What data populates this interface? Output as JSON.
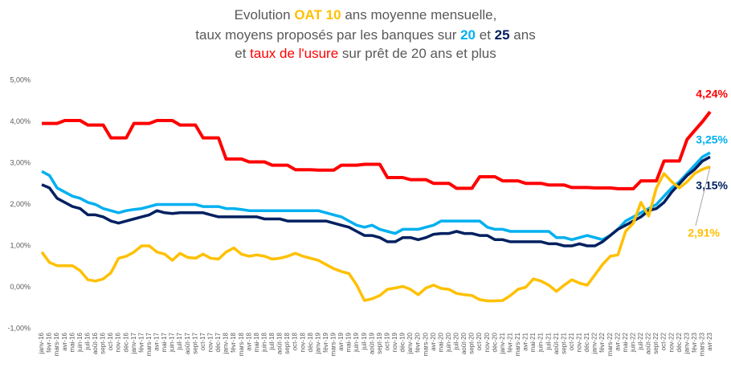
{
  "chart_data": {
    "type": "line",
    "title": [
      [
        "Evolution ",
        "OAT 10",
        " ans moyenne mensuelle,"
      ],
      [
        "taux moyens proposés par les banques sur ",
        "20",
        " et ",
        "25",
        " ans"
      ],
      [
        "et ",
        "taux de l'usure",
        " sur prêt de 20 ans et plus"
      ]
    ],
    "categories": [
      "janv-16",
      "févr-16",
      "mars-16",
      "avr-16",
      "mai-16",
      "juin-16",
      "juil-16",
      "août-16",
      "sept-16",
      "oct-16",
      "nov-16",
      "déc-16",
      "janv-17",
      "févr-17",
      "mars-17",
      "avr-17",
      "mai-17",
      "juin-17",
      "juil-17",
      "août-17",
      "sept-17",
      "oct-17",
      "nov-17",
      "déc-17",
      "janv-18",
      "févr-18",
      "mars-18",
      "avr-18",
      "mai-18",
      "juin-18",
      "juil-18",
      "août-18",
      "sept-18",
      "oct-18",
      "nov-18",
      "déc-18",
      "janv-19",
      "févr-19",
      "mars-19",
      "avr-19",
      "mai-19",
      "juin-19",
      "juil-19",
      "août-19",
      "sept-19",
      "oct-19",
      "nov-19",
      "déc-19",
      "janv-20",
      "févr-20",
      "mars-20",
      "avr-20",
      "mai-20",
      "juin-20",
      "juil-20",
      "août-20",
      "sept-20",
      "oct-20",
      "nov-20",
      "déc-20",
      "janv-21",
      "févr-21",
      "mars-21",
      "avr-21",
      "mai-21",
      "juin-21",
      "juil-21",
      "août-21",
      "sept-21",
      "oct-21",
      "nov-21",
      "déc-21",
      "janv-22",
      "févr-22",
      "mars-22",
      "avr-22",
      "mai-22",
      "juin-22",
      "juil-22",
      "août-22",
      "sept-22",
      "oct-22",
      "nov-22",
      "déc-22",
      "janv-23",
      "févr-23",
      "mars-23",
      "avr-23"
    ],
    "series": [
      {
        "color": "#ff0000",
        "values": [
          3.96,
          3.96,
          3.96,
          4.03,
          4.03,
          4.03,
          3.92,
          3.92,
          3.92,
          3.61,
          3.61,
          3.61,
          3.96,
          3.96,
          3.96,
          4.03,
          4.03,
          4.03,
          3.92,
          3.92,
          3.92,
          3.61,
          3.61,
          3.61,
          3.1,
          3.1,
          3.1,
          3.03,
          3.03,
          3.03,
          2.95,
          2.95,
          2.95,
          2.84,
          2.84,
          2.84,
          2.83,
          2.83,
          2.83,
          2.95,
          2.95,
          2.95,
          2.97,
          2.97,
          2.97,
          2.65,
          2.65,
          2.65,
          2.6,
          2.6,
          2.6,
          2.51,
          2.51,
          2.51,
          2.39,
          2.39,
          2.39,
          2.67,
          2.67,
          2.67,
          2.57,
          2.57,
          2.57,
          2.51,
          2.51,
          2.51,
          2.47,
          2.47,
          2.47,
          2.41,
          2.41,
          2.41,
          2.4,
          2.4,
          2.4,
          2.38,
          2.38,
          2.38,
          2.57,
          2.57,
          2.57,
          3.05,
          3.05,
          3.05,
          3.57,
          3.79,
          4.0,
          4.24
        ],
        "value_labels": [
          null,
          null,
          null,
          null,
          null,
          null,
          null,
          null,
          null,
          null,
          null,
          null,
          null,
          null,
          null,
          null,
          null,
          null,
          null,
          null,
          null,
          null,
          null,
          null,
          null,
          null,
          null,
          null,
          null,
          null,
          null,
          null,
          null,
          null,
          null,
          null,
          null,
          null,
          null,
          null,
          null,
          null,
          null,
          null,
          null,
          null,
          null,
          null,
          null,
          null,
          null,
          null,
          null,
          null,
          null,
          null,
          null,
          null,
          null,
          null,
          null,
          null,
          null,
          null,
          null,
          null,
          null,
          null,
          null,
          null,
          null,
          null,
          null,
          null,
          null,
          null,
          null,
          null,
          null,
          null,
          null,
          null,
          null,
          null,
          null,
          null,
          null,
          "4,24%"
        ]
      },
      {
        "color": "#00b0f0",
        "values": [
          2.8,
          2.7,
          2.4,
          2.3,
          2.2,
          2.15,
          2.05,
          2.0,
          1.9,
          1.85,
          1.8,
          1.85,
          1.88,
          1.9,
          1.95,
          2.0,
          2.0,
          2.0,
          2.0,
          2.0,
          2.0,
          1.95,
          1.95,
          1.95,
          1.9,
          1.9,
          1.88,
          1.85,
          1.85,
          1.85,
          1.85,
          1.85,
          1.85,
          1.85,
          1.85,
          1.85,
          1.85,
          1.8,
          1.75,
          1.7,
          1.6,
          1.5,
          1.45,
          1.5,
          1.4,
          1.35,
          1.3,
          1.4,
          1.4,
          1.4,
          1.45,
          1.5,
          1.6,
          1.6,
          1.6,
          1.6,
          1.6,
          1.6,
          1.45,
          1.4,
          1.4,
          1.35,
          1.35,
          1.35,
          1.35,
          1.35,
          1.35,
          1.2,
          1.2,
          1.15,
          1.2,
          1.25,
          1.2,
          1.15,
          1.25,
          1.4,
          1.6,
          1.7,
          1.8,
          1.9,
          2.0,
          2.2,
          2.4,
          2.55,
          2.75,
          2.95,
          3.15,
          3.25
        ],
        "value_labels": [
          null,
          null,
          null,
          null,
          null,
          null,
          null,
          null,
          null,
          null,
          null,
          null,
          null,
          null,
          null,
          null,
          null,
          null,
          null,
          null,
          null,
          null,
          null,
          null,
          null,
          null,
          null,
          null,
          null,
          null,
          null,
          null,
          null,
          null,
          null,
          null,
          null,
          null,
          null,
          null,
          null,
          null,
          null,
          null,
          null,
          null,
          null,
          null,
          null,
          null,
          null,
          null,
          null,
          null,
          null,
          null,
          null,
          null,
          null,
          null,
          null,
          null,
          null,
          null,
          null,
          null,
          null,
          null,
          null,
          null,
          null,
          null,
          null,
          null,
          null,
          null,
          null,
          null,
          null,
          null,
          null,
          null,
          null,
          null,
          null,
          null,
          null,
          "3,25%"
        ]
      },
      {
        "color": "#002060",
        "values": [
          2.48,
          2.4,
          2.15,
          2.05,
          1.95,
          1.9,
          1.75,
          1.75,
          1.7,
          1.6,
          1.55,
          1.6,
          1.65,
          1.7,
          1.75,
          1.85,
          1.8,
          1.78,
          1.8,
          1.8,
          1.8,
          1.8,
          1.75,
          1.7,
          1.7,
          1.7,
          1.7,
          1.7,
          1.7,
          1.65,
          1.65,
          1.65,
          1.6,
          1.6,
          1.6,
          1.6,
          1.6,
          1.6,
          1.55,
          1.5,
          1.45,
          1.35,
          1.25,
          1.25,
          1.2,
          1.1,
          1.1,
          1.2,
          1.2,
          1.15,
          1.2,
          1.28,
          1.3,
          1.3,
          1.35,
          1.3,
          1.3,
          1.25,
          1.25,
          1.15,
          1.15,
          1.1,
          1.1,
          1.1,
          1.1,
          1.1,
          1.05,
          1.05,
          1.0,
          1.0,
          1.05,
          1.0,
          1.0,
          1.1,
          1.25,
          1.4,
          1.5,
          1.6,
          1.7,
          1.85,
          1.9,
          2.05,
          2.3,
          2.5,
          2.7,
          2.85,
          3.05,
          3.15
        ],
        "value_labels": [
          null,
          null,
          null,
          null,
          null,
          null,
          null,
          null,
          null,
          null,
          null,
          null,
          null,
          null,
          null,
          null,
          null,
          null,
          null,
          null,
          null,
          null,
          null,
          null,
          null,
          null,
          null,
          null,
          null,
          null,
          null,
          null,
          null,
          null,
          null,
          null,
          null,
          null,
          null,
          null,
          null,
          null,
          null,
          null,
          null,
          null,
          null,
          null,
          null,
          null,
          null,
          null,
          null,
          null,
          null,
          null,
          null,
          null,
          null,
          null,
          null,
          null,
          null,
          null,
          null,
          null,
          null,
          null,
          null,
          null,
          null,
          null,
          null,
          null,
          null,
          null,
          null,
          null,
          null,
          null,
          null,
          null,
          null,
          null,
          null,
          null,
          null,
          "3,15%"
        ]
      },
      {
        "color": "#ffc000",
        "values": [
          0.85,
          0.6,
          0.52,
          0.52,
          0.52,
          0.4,
          0.18,
          0.15,
          0.2,
          0.35,
          0.7,
          0.75,
          0.85,
          1.0,
          1.0,
          0.85,
          0.8,
          0.65,
          0.82,
          0.72,
          0.7,
          0.8,
          0.7,
          0.68,
          0.85,
          0.95,
          0.8,
          0.75,
          0.78,
          0.75,
          0.68,
          0.7,
          0.75,
          0.82,
          0.75,
          0.7,
          0.65,
          0.55,
          0.45,
          0.38,
          0.33,
          0.05,
          -0.32,
          -0.28,
          -0.2,
          -0.05,
          -0.02,
          0.02,
          -0.05,
          -0.18,
          -0.02,
          0.05,
          -0.03,
          -0.05,
          -0.15,
          -0.18,
          -0.2,
          -0.3,
          -0.33,
          -0.33,
          -0.32,
          -0.2,
          -0.05,
          0.0,
          0.2,
          0.15,
          0.05,
          -0.1,
          0.05,
          0.18,
          0.1,
          0.05,
          0.3,
          0.55,
          0.75,
          0.78,
          1.35,
          1.55,
          2.05,
          1.72,
          2.4,
          2.75,
          2.55,
          2.4,
          2.55,
          2.75,
          2.85,
          2.91
        ],
        "value_labels": [
          null,
          null,
          null,
          null,
          null,
          null,
          null,
          null,
          null,
          null,
          null,
          null,
          null,
          null,
          null,
          null,
          null,
          null,
          null,
          null,
          null,
          null,
          null,
          null,
          null,
          null,
          null,
          null,
          null,
          null,
          null,
          null,
          null,
          null,
          null,
          null,
          null,
          null,
          null,
          null,
          null,
          null,
          null,
          null,
          null,
          null,
          null,
          null,
          null,
          null,
          null,
          null,
          null,
          null,
          null,
          null,
          null,
          null,
          null,
          null,
          null,
          null,
          null,
          null,
          null,
          null,
          null,
          null,
          null,
          null,
          null,
          null,
          null,
          null,
          null,
          null,
          null,
          null,
          null,
          null,
          null,
          null,
          null,
          null,
          null,
          null,
          null,
          "2,91%"
        ]
      }
    ],
    "ylim": [
      -1,
      5
    ],
    "yticks": [
      {
        "value": -1,
        "label": "-1,00%"
      },
      {
        "value": 0,
        "label": "0,00%"
      },
      {
        "value": 1,
        "label": "1,00%"
      },
      {
        "value": 2,
        "label": "2,00%"
      },
      {
        "value": 3,
        "label": "3,00%"
      },
      {
        "value": 4,
        "label": "4,00%"
      },
      {
        "value": 5,
        "label": "5,00%"
      }
    ],
    "grid": false
  }
}
